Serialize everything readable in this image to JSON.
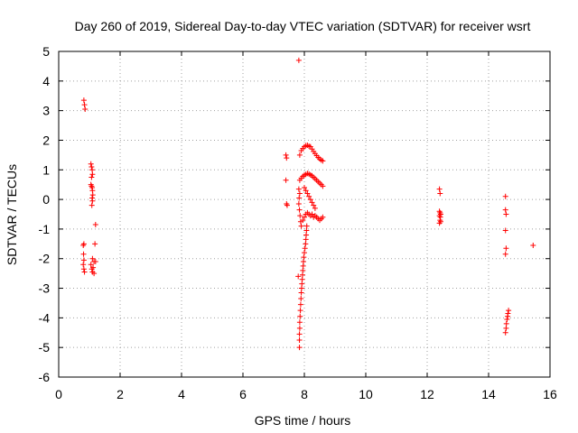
{
  "chart_data": {
    "type": "scatter",
    "title": "Day 260 of 2019, Sidereal Day-to-day VTEC variation (SDTVAR) for receiver wsrt",
    "xlabel": "GPS time / hours",
    "ylabel": "SDTVAR / TECUs",
    "xlim": [
      0,
      16
    ],
    "ylim": [
      -6,
      5
    ],
    "xticks": [
      "0",
      "2",
      "4",
      "6",
      "8",
      "10",
      "12",
      "14",
      "16"
    ],
    "yticks": [
      "-6",
      "-5",
      "-4",
      "-3",
      "-2",
      "-1",
      "0",
      "1",
      "2",
      "3",
      "4",
      "5"
    ],
    "grid": true,
    "marker": "plus",
    "color": "#ff0000",
    "series": [
      {
        "name": "wsrt",
        "points": [
          [
            0.82,
            3.35
          ],
          [
            0.84,
            3.2
          ],
          [
            0.86,
            3.05
          ],
          [
            0.8,
            -1.55
          ],
          [
            0.82,
            -1.5
          ],
          [
            0.81,
            -1.85
          ],
          [
            0.82,
            -2.05
          ],
          [
            0.8,
            -2.2
          ],
          [
            0.82,
            -2.35
          ],
          [
            0.84,
            -2.45
          ],
          [
            1.05,
            1.2
          ],
          [
            1.07,
            1.1
          ],
          [
            1.09,
            1.0
          ],
          [
            1.1,
            0.85
          ],
          [
            1.07,
            0.75
          ],
          [
            1.05,
            0.5
          ],
          [
            1.07,
            0.45
          ],
          [
            1.09,
            0.4
          ],
          [
            1.1,
            0.3
          ],
          [
            1.11,
            0.15
          ],
          [
            1.09,
            0.05
          ],
          [
            1.1,
            -0.05
          ],
          [
            1.08,
            -0.2
          ],
          [
            1.2,
            -0.85
          ],
          [
            1.18,
            -1.5
          ],
          [
            1.1,
            -2.0
          ],
          [
            1.15,
            -2.1
          ],
          [
            1.05,
            -2.2
          ],
          [
            1.12,
            -2.3
          ],
          [
            1.08,
            -2.35
          ],
          [
            1.1,
            -2.45
          ],
          [
            1.15,
            -2.5
          ],
          [
            1.2,
            -2.1
          ],
          [
            7.4,
            1.5
          ],
          [
            7.42,
            1.4
          ],
          [
            7.4,
            0.65
          ],
          [
            7.42,
            -0.15
          ],
          [
            7.44,
            -0.2
          ],
          [
            7.82,
            4.7
          ],
          [
            7.8,
            -2.6
          ],
          [
            7.85,
            1.5
          ],
          [
            7.9,
            1.65
          ],
          [
            7.95,
            1.72
          ],
          [
            8.0,
            1.78
          ],
          [
            8.05,
            1.82
          ],
          [
            8.1,
            1.83
          ],
          [
            8.15,
            1.8
          ],
          [
            8.2,
            1.78
          ],
          [
            8.25,
            1.7
          ],
          [
            8.3,
            1.62
          ],
          [
            8.35,
            1.55
          ],
          [
            8.4,
            1.48
          ],
          [
            8.45,
            1.42
          ],
          [
            8.5,
            1.37
          ],
          [
            8.55,
            1.33
          ],
          [
            8.6,
            1.3
          ],
          [
            7.85,
            0.65
          ],
          [
            7.9,
            0.72
          ],
          [
            7.95,
            0.78
          ],
          [
            8.0,
            0.82
          ],
          [
            8.05,
            0.85
          ],
          [
            8.1,
            0.88
          ],
          [
            8.15,
            0.86
          ],
          [
            8.2,
            0.83
          ],
          [
            8.25,
            0.8
          ],
          [
            8.3,
            0.75
          ],
          [
            8.35,
            0.7
          ],
          [
            8.4,
            0.65
          ],
          [
            8.45,
            0.6
          ],
          [
            8.5,
            0.55
          ],
          [
            8.55,
            0.5
          ],
          [
            8.6,
            0.45
          ],
          [
            8.0,
            0.4
          ],
          [
            8.05,
            0.3
          ],
          [
            8.1,
            0.2
          ],
          [
            8.15,
            0.1
          ],
          [
            8.2,
            0.0
          ],
          [
            8.25,
            -0.1
          ],
          [
            8.3,
            -0.2
          ],
          [
            8.35,
            -0.3
          ],
          [
            7.82,
            0.35
          ],
          [
            7.85,
            0.2
          ],
          [
            7.83,
            0.05
          ],
          [
            7.82,
            -0.15
          ],
          [
            7.84,
            -0.35
          ],
          [
            7.86,
            -0.55
          ],
          [
            7.88,
            -0.75
          ],
          [
            7.9,
            -0.9
          ],
          [
            7.95,
            -0.7
          ],
          [
            8.0,
            -0.6
          ],
          [
            8.05,
            -0.5
          ],
          [
            8.1,
            -0.45
          ],
          [
            8.15,
            -0.5
          ],
          [
            8.2,
            -0.55
          ],
          [
            8.25,
            -0.5
          ],
          [
            8.3,
            -0.6
          ],
          [
            8.35,
            -0.55
          ],
          [
            8.4,
            -0.6
          ],
          [
            8.45,
            -0.65
          ],
          [
            8.5,
            -0.7
          ],
          [
            8.55,
            -0.65
          ],
          [
            8.6,
            -0.6
          ],
          [
            8.08,
            -0.9
          ],
          [
            8.07,
            -1.05
          ],
          [
            8.06,
            -1.2
          ],
          [
            8.05,
            -1.35
          ],
          [
            8.04,
            -1.5
          ],
          [
            8.02,
            -1.65
          ],
          [
            8.0,
            -1.8
          ],
          [
            7.98,
            -1.95
          ],
          [
            7.97,
            -2.1
          ],
          [
            7.96,
            -2.25
          ],
          [
            7.95,
            -2.4
          ],
          [
            7.94,
            -2.55
          ],
          [
            7.93,
            -2.7
          ],
          [
            7.92,
            -2.85
          ],
          [
            7.91,
            -3.0
          ],
          [
            7.9,
            -3.15
          ],
          [
            7.89,
            -3.35
          ],
          [
            7.88,
            -3.55
          ],
          [
            7.87,
            -3.75
          ],
          [
            7.86,
            -3.95
          ],
          [
            7.85,
            -4.15
          ],
          [
            7.85,
            -4.35
          ],
          [
            7.84,
            -4.55
          ],
          [
            7.84,
            -4.75
          ],
          [
            7.84,
            -5.0
          ],
          [
            12.4,
            0.35
          ],
          [
            12.42,
            0.2
          ],
          [
            12.4,
            -0.4
          ],
          [
            12.42,
            -0.45
          ],
          [
            12.44,
            -0.5
          ],
          [
            12.4,
            -0.55
          ],
          [
            12.43,
            -0.6
          ],
          [
            12.42,
            -0.7
          ],
          [
            12.44,
            -0.75
          ],
          [
            12.4,
            -0.8
          ],
          [
            14.55,
            0.1
          ],
          [
            14.55,
            -0.35
          ],
          [
            14.57,
            -0.5
          ],
          [
            14.55,
            -1.05
          ],
          [
            14.57,
            -1.65
          ],
          [
            14.55,
            -1.85
          ],
          [
            14.65,
            -3.75
          ],
          [
            14.63,
            -3.85
          ],
          [
            14.62,
            -3.95
          ],
          [
            14.6,
            -4.05
          ],
          [
            14.58,
            -4.2
          ],
          [
            14.57,
            -4.35
          ],
          [
            14.55,
            -4.5
          ],
          [
            15.45,
            -1.55
          ]
        ]
      }
    ]
  }
}
